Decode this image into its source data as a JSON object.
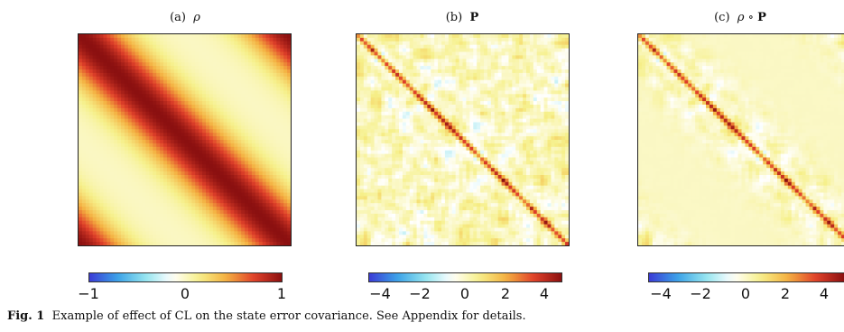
{
  "panels": [
    {
      "label": "(a)",
      "symbol": "ρ",
      "bold_symbol": ""
    },
    {
      "label": "(b)",
      "symbol": "",
      "bold_symbol": "P"
    },
    {
      "label": "(c)",
      "symbol": "ρ ∘",
      "bold_symbol": "P"
    }
  ],
  "colorbars": [
    {
      "ticks": [
        "−1",
        "0",
        "1"
      ],
      "range": [
        -1,
        1
      ]
    },
    {
      "ticks": [
        "−4",
        "−2",
        "0",
        "2",
        "4"
      ],
      "range": [
        -5,
        5
      ]
    },
    {
      "ticks": [
        "−4",
        "−2",
        "0",
        "2",
        "4"
      ],
      "range": [
        -5,
        5
      ]
    }
  ],
  "caption": {
    "lead": "Fig. 1",
    "text": "Example of effect of CL on the state error covariance. See Appendix for details."
  },
  "colormap": [
    "#3b3bd6",
    "#3aa0e8",
    "#8fe3ee",
    "#ffffff",
    "#f6f08a",
    "#f4b040",
    "#e0402a",
    "#8b1010"
  ]
}
